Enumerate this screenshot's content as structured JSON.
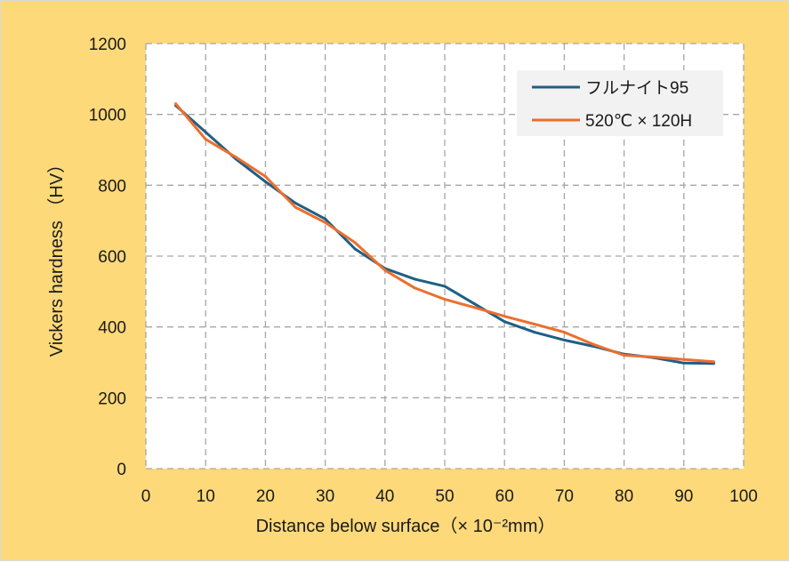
{
  "chart_data": {
    "type": "line",
    "title": "",
    "xlabel": "Distance below surface（× 10⁻²mm）",
    "ylabel": "Vickers hardness （HV）",
    "xlim": [
      0,
      100
    ],
    "ylim": [
      0,
      1200
    ],
    "xticks": [
      0,
      10,
      20,
      30,
      40,
      50,
      60,
      70,
      80,
      90,
      100
    ],
    "yticks": [
      0,
      200,
      400,
      600,
      800,
      1000,
      1200
    ],
    "grid": true,
    "legend_position": "top-right",
    "series": [
      {
        "name": "フルナイト95",
        "color": "#1f5f85",
        "x": [
          5,
          10,
          15,
          20,
          25,
          30,
          35,
          40,
          45,
          50,
          55,
          60,
          65,
          70,
          75,
          80,
          85,
          90,
          95
        ],
        "y": [
          1025,
          950,
          875,
          810,
          750,
          705,
          620,
          565,
          535,
          515,
          465,
          415,
          385,
          363,
          345,
          323,
          313,
          298,
          297
        ]
      },
      {
        "name": "520℃ × 120H",
        "color": "#ec6f2d",
        "x": [
          5,
          10,
          15,
          20,
          25,
          30,
          35,
          40,
          45,
          50,
          55,
          60,
          65,
          70,
          75,
          80,
          85,
          90,
          95
        ],
        "y": [
          1030,
          930,
          880,
          825,
          738,
          695,
          638,
          560,
          510,
          478,
          455,
          430,
          408,
          385,
          350,
          320,
          315,
          308,
          302
        ]
      }
    ]
  }
}
